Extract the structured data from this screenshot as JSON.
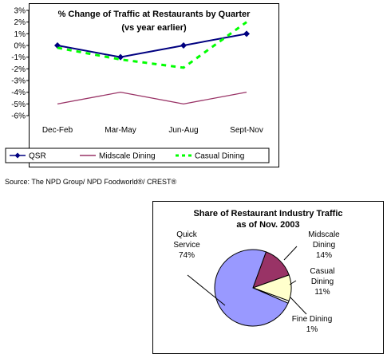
{
  "source_note": "Source: The NPD Group/ NPD Foodworld®/ CREST®",
  "chart_data": [
    {
      "type": "line",
      "title": "% Change of Traffic at Restaurants by Quarter",
      "subtitle": "(vs year earlier)",
      "categories": [
        "Dec-Feb",
        "Mar-May",
        "Jun-Aug",
        "Sept-Nov"
      ],
      "y_ticks": [
        "3%",
        "2%",
        "1%",
        "0%",
        "-1%",
        "-2%",
        "-3%",
        "-4%",
        "-5%",
        "-6%"
      ],
      "ylim": [
        -6,
        3
      ],
      "grid": false,
      "legend_position": "bottom",
      "series": [
        {
          "name": "QSR",
          "values": [
            0,
            -1,
            0,
            1
          ],
          "color": "#000080",
          "style": "solid-diamond"
        },
        {
          "name": "Midscale Dining",
          "values": [
            -5,
            -4,
            -5,
            -4
          ],
          "color": "#993366",
          "style": "solid"
        },
        {
          "name": "Casual Dining",
          "values": [
            -0.2,
            -1.2,
            -1.9,
            2.0
          ],
          "color": "#00ff00",
          "style": "dashed"
        }
      ]
    },
    {
      "type": "pie",
      "title": "Share of Restaurant Industry Traffic",
      "subtitle": "as of Nov. 2003",
      "slices": [
        {
          "label": "Midscale Dining",
          "pct_text": "14%",
          "value": 14,
          "color": "#993366"
        },
        {
          "label": "Casual Dining",
          "pct_text": "11%",
          "value": 11,
          "color": "#ffffcc"
        },
        {
          "label": "Fine Dining",
          "pct_text": "1%",
          "value": 1,
          "color": "#ffffff"
        },
        {
          "label": "Quick Service",
          "pct_text": "74%",
          "value": 74,
          "color": "#9999ff"
        }
      ],
      "labels": {
        "quick_1": "Quick",
        "quick_2": "Service",
        "quick_3": "74%",
        "mid_1": "Midscale",
        "mid_2": "Dining",
        "mid_3": "14%",
        "cas_1": "Casual",
        "cas_2": "Dining",
        "cas_3": "11%",
        "fine_1": "Fine Dining",
        "fine_2": "1%"
      }
    }
  ]
}
